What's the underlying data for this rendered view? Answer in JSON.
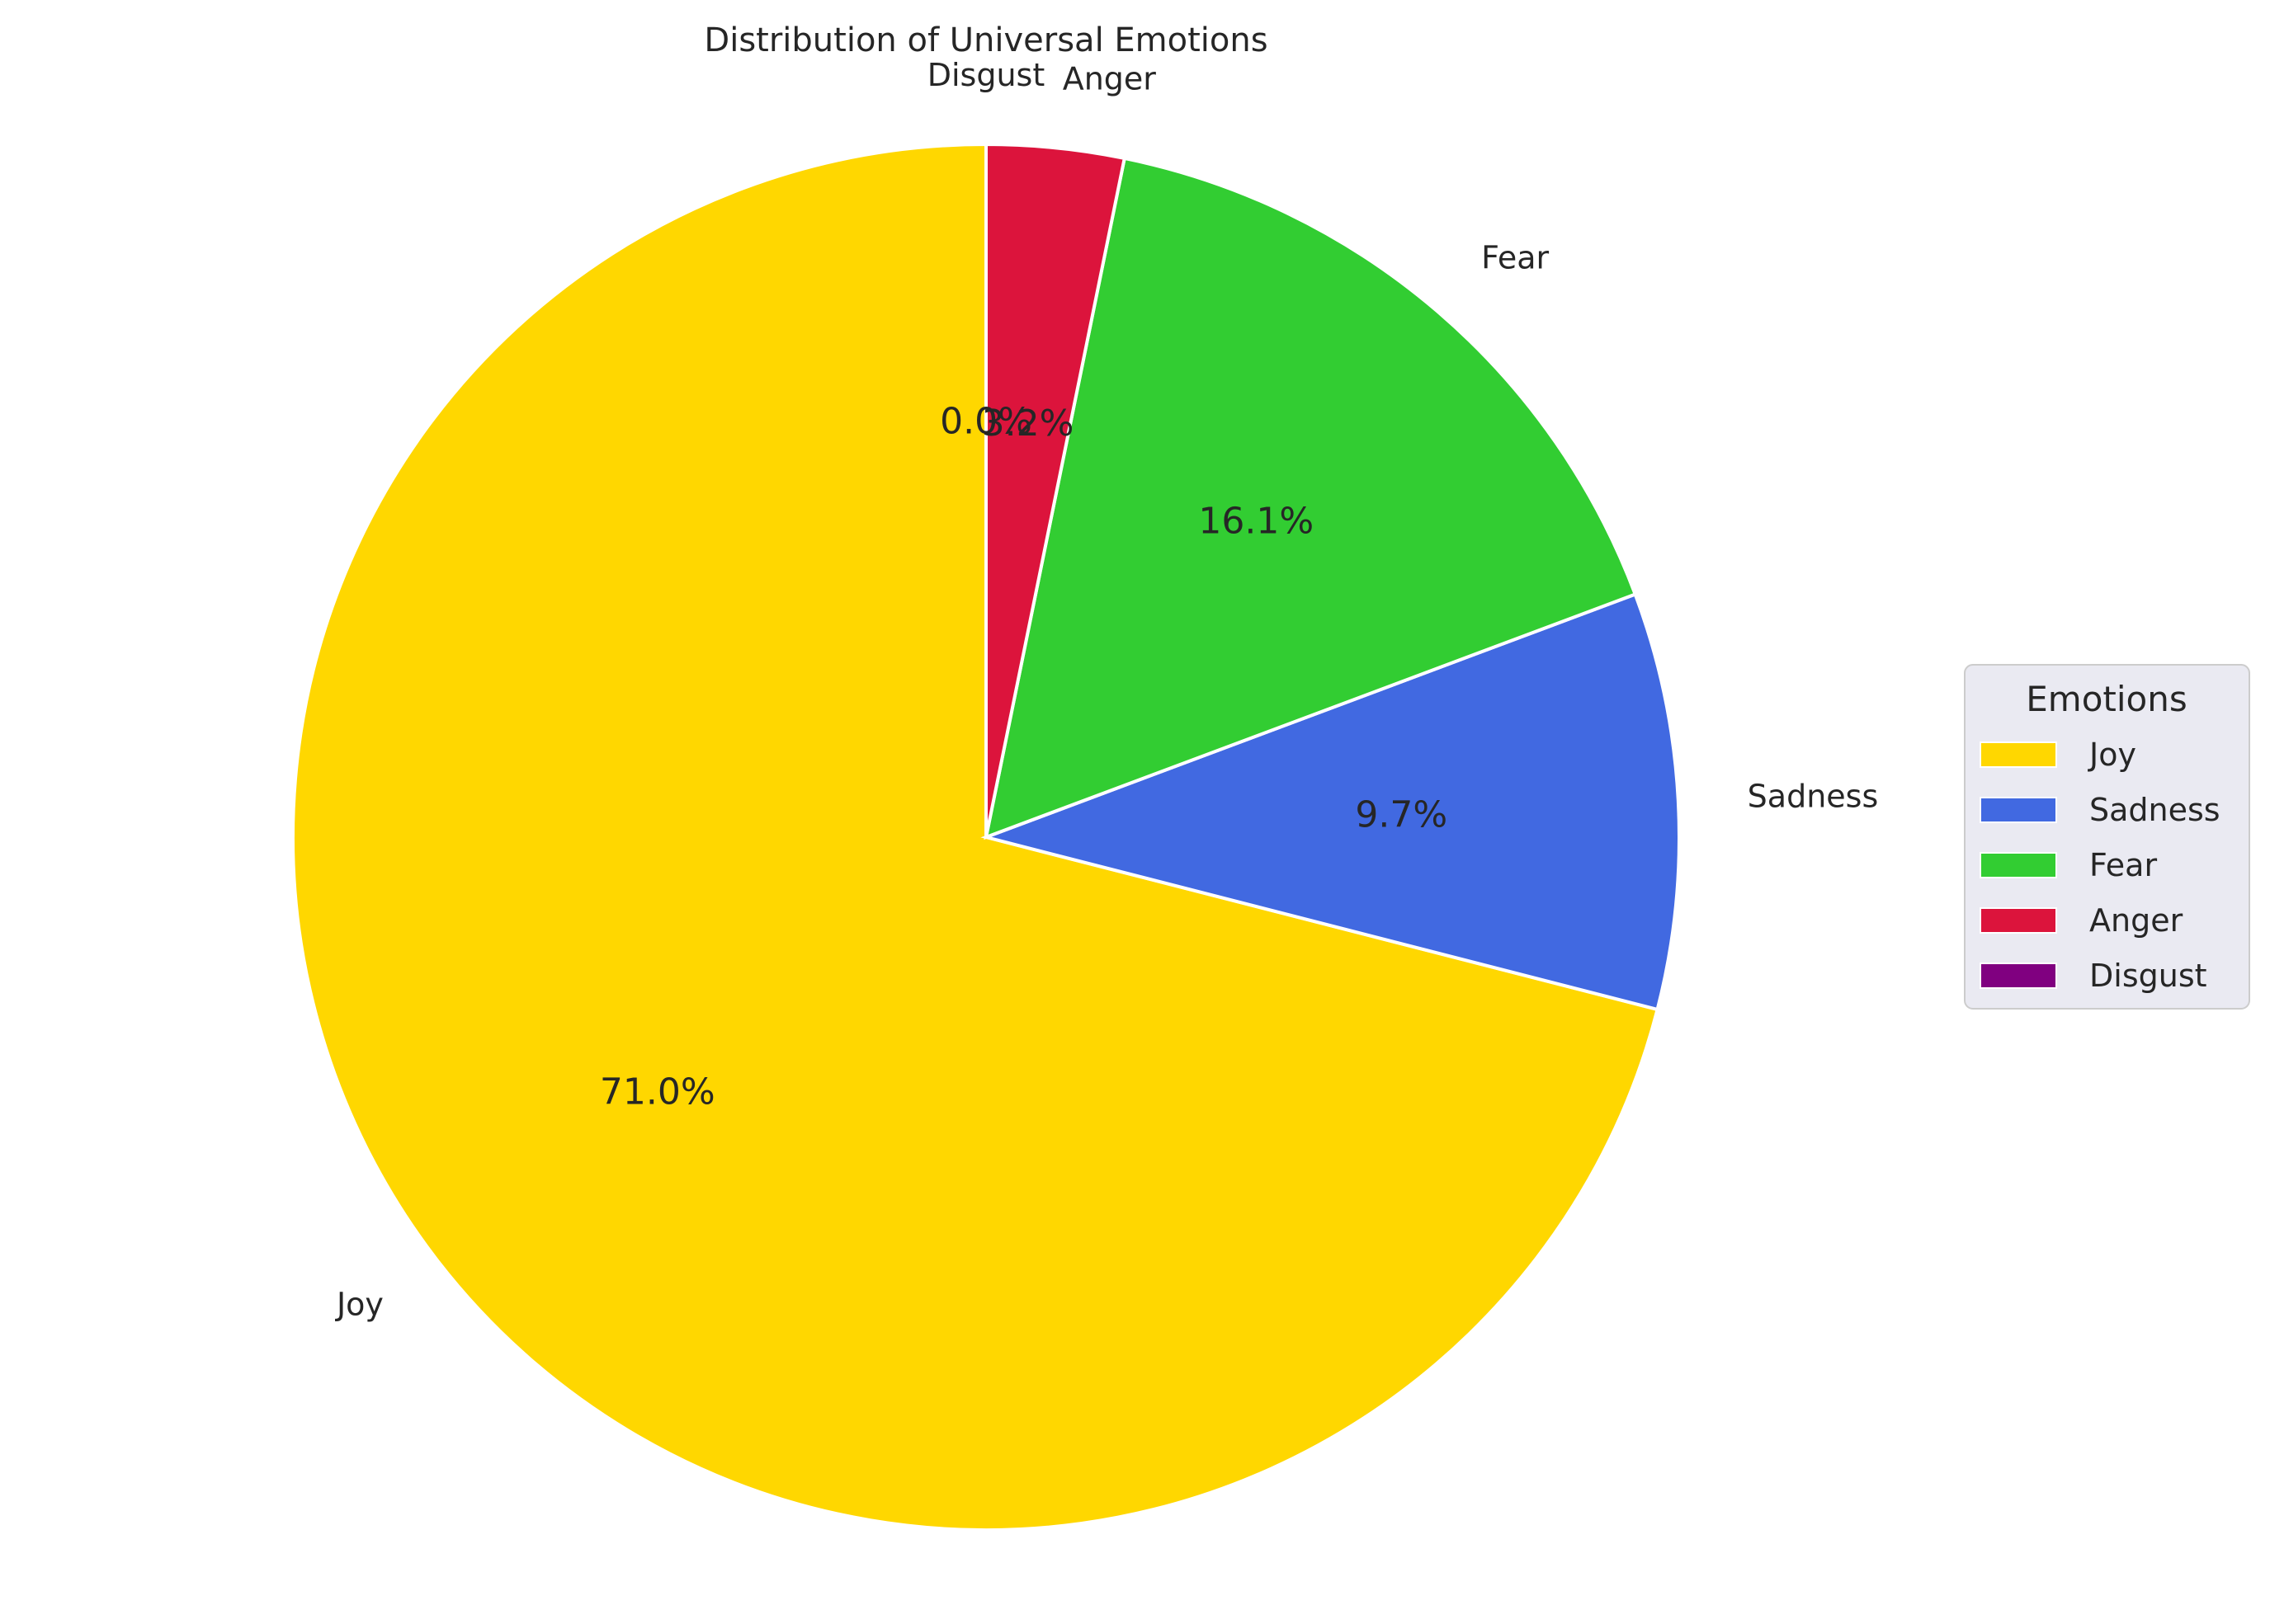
{
  "chart_data": {
    "type": "pie",
    "title": "Distribution of Universal Emotions",
    "categories": [
      "Joy",
      "Sadness",
      "Fear",
      "Anger",
      "Disgust"
    ],
    "values": [
      71.0,
      9.7,
      16.1,
      3.2,
      0.0
    ],
    "percent_labels": [
      "71.0%",
      "9.7%",
      "16.1%",
      "3.2%",
      "0.0%"
    ],
    "colors": [
      "#FFD700",
      "#4169E1",
      "#32CD32",
      "#DC143C",
      "#800080"
    ],
    "start_angle_deg": 90,
    "direction": "counterclockwise",
    "legend": {
      "title": "Emotions",
      "placement": "center-right",
      "entries": [
        "Joy",
        "Sadness",
        "Fear",
        "Anger",
        "Disgust"
      ]
    }
  }
}
